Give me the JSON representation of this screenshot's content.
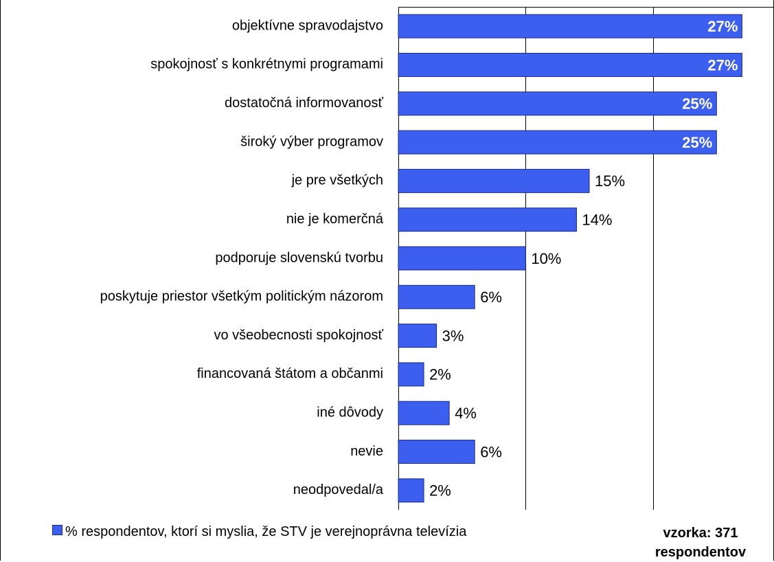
{
  "chart_data": {
    "type": "hbar",
    "categories": [
      "objektívne spravodajstvo",
      "spokojnosť s konkrétnymi programami",
      "dostatočná informovanosť",
      "široký výber programov",
      "je pre všetkých",
      "nie je komerčná",
      "podporuje slovenskú tvorbu",
      "poskytuje priestor všetkým politickým názorom",
      "vo všeobecnosti spokojnosť",
      "financovaná štátom a občanmi",
      "iné dôvody",
      "nevie",
      "neodpovedal/a"
    ],
    "series": [
      {
        "name": "% respondentov, ktorí si myslia, že STV je verejnoprávna televízia",
        "color": "#3c5ff0",
        "values": [
          27,
          27,
          25,
          25,
          15,
          14,
          10,
          6,
          3,
          2,
          4,
          6,
          2
        ],
        "value_labels": [
          "27%",
          "27%",
          "25%",
          "25%",
          "15%",
          "14%",
          "10%",
          "6%",
          "3%",
          "2%",
          "4%",
          "6%",
          "2%"
        ]
      }
    ],
    "xlim": [
      0,
      30
    ],
    "xticks": [
      0,
      10,
      20
    ],
    "grid": true,
    "legend": "bottom-left",
    "annotation": "vzorka: 371 respondentov"
  }
}
